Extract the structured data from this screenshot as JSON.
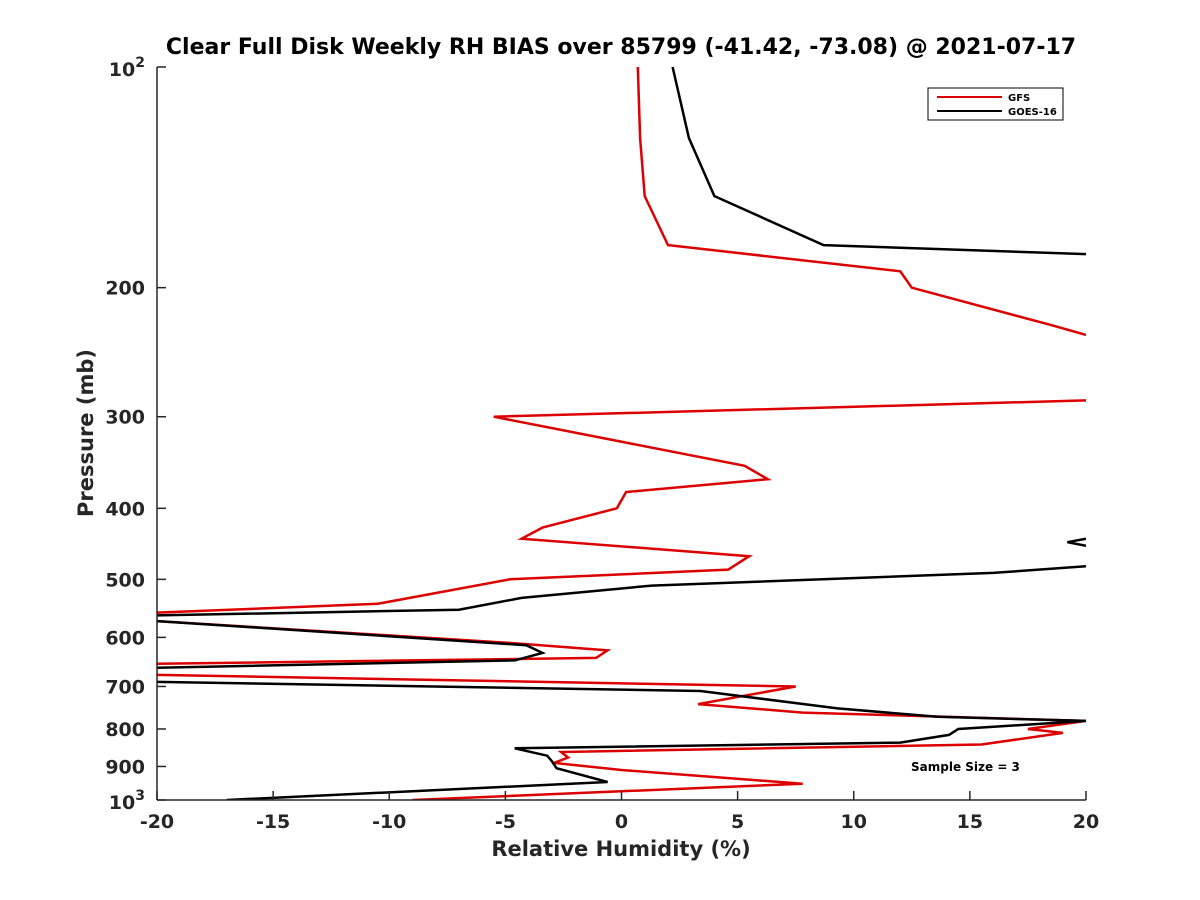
{
  "chart_data": {
    "type": "line",
    "title": "Clear Full Disk Weekly RH BIAS over 85799 (-41.42, -73.08) @ 2021-07-17",
    "xlabel": "Relative Humidity (%)",
    "ylabel": "Pressure (mb)",
    "xlim": [
      -20,
      20
    ],
    "ylim": [
      100,
      1000
    ],
    "yscale": "log",
    "y_reversed": true,
    "grid": false,
    "legend_position": "top-right",
    "x_ticks": [
      -20,
      -15,
      -10,
      -5,
      0,
      5,
      10,
      15,
      20
    ],
    "x_tick_labels": [
      "-20",
      "-15",
      "-10",
      "-5",
      "0",
      "5",
      "10",
      "15",
      "20"
    ],
    "y_ticks": [
      100,
      200,
      300,
      400,
      500,
      600,
      700,
      800,
      900,
      1000
    ],
    "y_tick_labels": [
      "10^2",
      "200",
      "300",
      "400",
      "500",
      "600",
      "700",
      "800",
      "900",
      "10^3"
    ],
    "annotation": "Sample Size = 3",
    "series": [
      {
        "name": "GFS",
        "color": "#dd0000",
        "points": [
          [
            0.7,
            100
          ],
          [
            0.8,
            125
          ],
          [
            1.0,
            150
          ],
          [
            2.0,
            175
          ],
          [
            12.0,
            190
          ],
          [
            12.5,
            200
          ],
          [
            18.5,
            225
          ],
          [
            20,
            232
          ],
          [
            null,
            null
          ],
          [
            20,
            285
          ],
          [
            -5.5,
            300
          ],
          [
            5.3,
            350
          ],
          [
            6.3,
            365
          ],
          [
            0.2,
            380
          ],
          [
            -0.2,
            400
          ],
          [
            -3.4,
            425
          ],
          [
            -4.3,
            440
          ],
          [
            5.5,
            465
          ],
          [
            4.6,
            485
          ],
          [
            -4.8,
            500
          ],
          [
            -10.5,
            540
          ],
          [
            -20,
            555
          ],
          [
            null,
            null
          ],
          [
            -20,
            570
          ],
          [
            -5.0,
            610
          ],
          [
            -0.6,
            625
          ],
          [
            -1.1,
            640
          ],
          [
            -20,
            652
          ],
          [
            null,
            null
          ],
          [
            -20,
            675
          ],
          [
            7.5,
            700
          ],
          [
            3.3,
            740
          ],
          [
            7.8,
            760
          ],
          [
            20,
            780
          ],
          [
            17.5,
            800
          ],
          [
            19.0,
            810
          ],
          [
            15.5,
            840
          ],
          [
            -2.6,
            860
          ],
          [
            -2.3,
            875
          ],
          [
            -2.9,
            890
          ],
          [
            0.0,
            910
          ],
          [
            7.8,
            950
          ],
          [
            -9.0,
            1000
          ]
        ]
      },
      {
        "name": "GOES-16",
        "color": "#000000",
        "points": [
          [
            2.2,
            100
          ],
          [
            2.9,
            125
          ],
          [
            4.0,
            150
          ],
          [
            8.7,
            175
          ],
          [
            20,
            180
          ],
          [
            null,
            null
          ],
          [
            20,
            440
          ],
          [
            19.2,
            445
          ],
          [
            20,
            450
          ],
          [
            null,
            null
          ],
          [
            20,
            480
          ],
          [
            16.0,
            490
          ],
          [
            1.3,
            510
          ],
          [
            -4.3,
            530
          ],
          [
            -7.0,
            550
          ],
          [
            -20,
            560
          ],
          [
            null,
            null
          ],
          [
            -20,
            570
          ],
          [
            -4.1,
            615
          ],
          [
            -3.4,
            630
          ],
          [
            -4.6,
            645
          ],
          [
            -20,
            660
          ],
          [
            null,
            null
          ],
          [
            -20,
            690
          ],
          [
            3.4,
            710
          ],
          [
            9.3,
            750
          ],
          [
            13.6,
            770
          ],
          [
            20,
            780
          ],
          [
            14.5,
            800
          ],
          [
            14.1,
            815
          ],
          [
            12.0,
            835
          ],
          [
            -4.6,
            850
          ],
          [
            -3.2,
            870
          ],
          [
            -3.0,
            885
          ],
          [
            -2.8,
            905
          ],
          [
            -0.6,
            945
          ],
          [
            -17.0,
            1000
          ]
        ]
      }
    ]
  }
}
